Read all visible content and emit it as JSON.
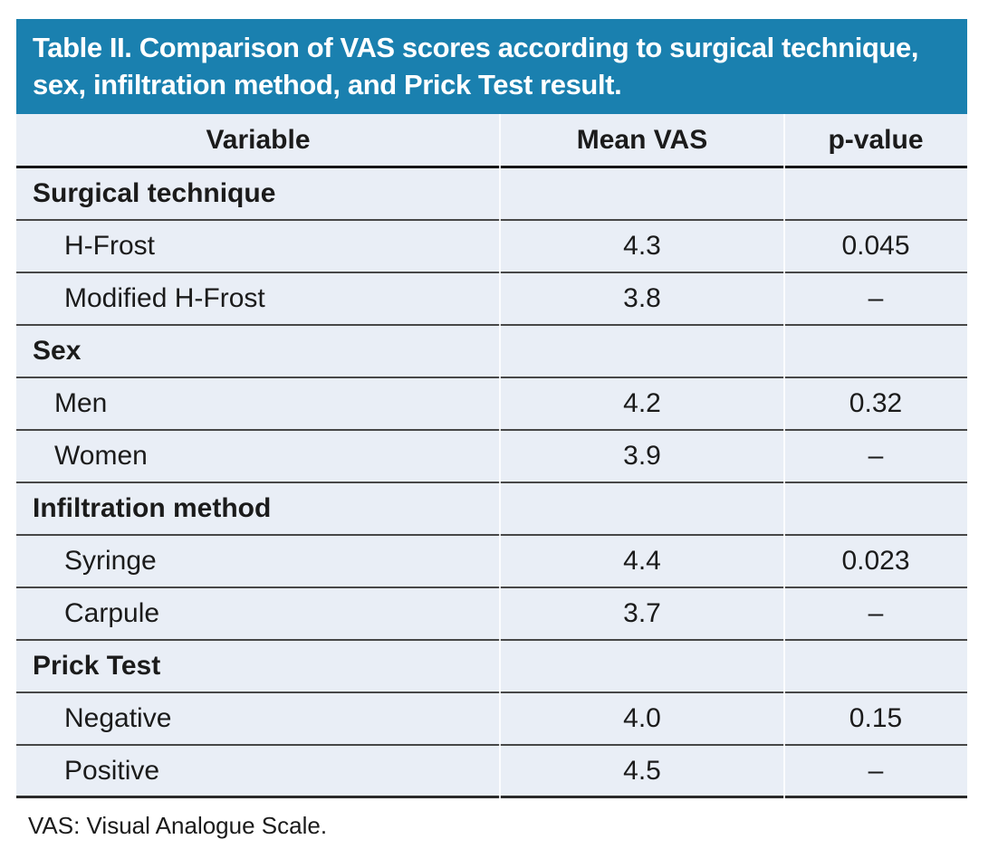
{
  "table": {
    "title": "Table II. Comparison of VAS scores according to surgical technique, sex, infiltration method, and Prick Test result.",
    "columns": {
      "variable": "Variable",
      "mean_vas": "Mean VAS",
      "p_value": "p-value"
    },
    "sections": [
      {
        "header": "Surgical technique",
        "rows": [
          {
            "label": "H-Frost",
            "mean_vas": "4.3",
            "p_value": "0.045"
          },
          {
            "label": "Modified H-Frost",
            "mean_vas": "3.8",
            "p_value": "–"
          }
        ]
      },
      {
        "header": "Sex",
        "rows": [
          {
            "label": "Men",
            "mean_vas": "4.2",
            "p_value": "0.32"
          },
          {
            "label": "Women",
            "mean_vas": "3.9",
            "p_value": "–"
          }
        ]
      },
      {
        "header": "Infiltration method",
        "rows": [
          {
            "label": "Syringe",
            "mean_vas": "4.4",
            "p_value": "0.023"
          },
          {
            "label": "Carpule",
            "mean_vas": "3.7",
            "p_value": "–"
          }
        ]
      },
      {
        "header": "Prick Test",
        "rows": [
          {
            "label": "Negative",
            "mean_vas": "4.0",
            "p_value": "0.15"
          },
          {
            "label": "Positive",
            "mean_vas": "4.5",
            "p_value": "–"
          }
        ]
      }
    ],
    "footnote": "VAS: Visual Analogue Scale.",
    "colors": {
      "title_bg": "#1a80af",
      "title_text": "#ffffff",
      "row_bg": "#e9eef6",
      "rule_dark": "#474747",
      "rule_heavy": "#151515",
      "body_text": "#1b1b1b"
    }
  },
  "chart_data": {
    "type": "table",
    "title": "Table II. Comparison of VAS scores according to surgical technique, sex, infiltration method, and Prick Test result.",
    "columns": [
      "Variable",
      "Mean VAS",
      "p-value"
    ],
    "rows": [
      [
        "Surgical technique",
        "",
        ""
      ],
      [
        "H-Frost",
        "4.3",
        "0.045"
      ],
      [
        "Modified H-Frost",
        "3.8",
        "–"
      ],
      [
        "Sex",
        "",
        ""
      ],
      [
        "Men",
        "4.2",
        "0.32"
      ],
      [
        "Women",
        "3.9",
        "–"
      ],
      [
        "Infiltration method",
        "",
        ""
      ],
      [
        "Syringe",
        "4.4",
        "0.023"
      ],
      [
        "Carpule",
        "3.7",
        "–"
      ],
      [
        "Prick Test",
        "",
        ""
      ],
      [
        "Negative",
        "4.0",
        "0.15"
      ],
      [
        "Positive",
        "4.5",
        "–"
      ]
    ],
    "footnote": "VAS: Visual Analogue Scale."
  }
}
